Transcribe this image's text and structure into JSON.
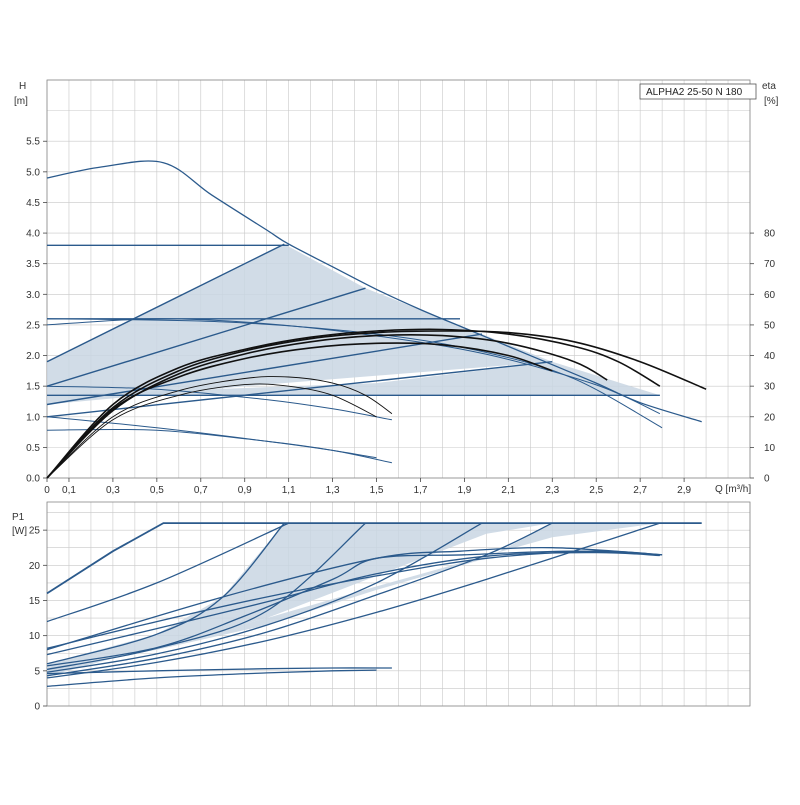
{
  "model_label": "ALPHA2 25-50 N 180",
  "colors": {
    "curve": "#2b5a8c",
    "shade": "#c9d6e3",
    "efficiency": "#111111",
    "grid": "#c8c8c8",
    "axis": "#444444",
    "text": "#333333"
  },
  "chart_data": [
    {
      "id": "head",
      "type": "line",
      "ylabel": "H",
      "yunit": "[m]",
      "y2label": "eta",
      "y2unit": "[%]",
      "xlabel": "Q [m³/h]",
      "xlim": [
        0,
        3.2
      ],
      "ylim": [
        0,
        6.5
      ],
      "y2lim": [
        0,
        130
      ],
      "x_ticks": [
        "0",
        "0,1",
        "0,3",
        "0,5",
        "0,7",
        "0,9",
        "1,1",
        "1,3",
        "1,5",
        "1,7",
        "1,9",
        "2,1",
        "2,3",
        "2,5",
        "2,7",
        "2,9"
      ],
      "x_tick_values": [
        0,
        0.1,
        0.3,
        0.5,
        0.7,
        0.9,
        1.1,
        1.3,
        1.5,
        1.7,
        1.9,
        2.1,
        2.3,
        2.5,
        2.7,
        2.9
      ],
      "y_ticks": [
        "0.0",
        "0.5",
        "1.0",
        "1.5",
        "2.0",
        "2.5",
        "3.0",
        "3.5",
        "4.0",
        "4.5",
        "5.0",
        "5.5"
      ],
      "y_tick_values": [
        0,
        0.5,
        1.0,
        1.5,
        2.0,
        2.5,
        3.0,
        3.5,
        4.0,
        4.5,
        5.0,
        5.5
      ],
      "y2_ticks": [
        "0",
        "10",
        "20",
        "30",
        "40",
        "50",
        "60",
        "70",
        "80"
      ],
      "y2_tick_values": [
        0,
        10,
        20,
        30,
        40,
        50,
        60,
        70,
        80
      ],
      "grid": true,
      "shaded_areas": [
        {
          "points": [
            [
              0,
              1.9
            ],
            [
              1.08,
              3.82
            ],
            [
              1.45,
              3.1
            ],
            [
              1.98,
              2.35
            ],
            [
              2.3,
              1.9
            ],
            [
              0.9,
              1.5
            ],
            [
              0,
              1.2
            ]
          ]
        },
        {
          "points": [
            [
              0,
              1.35
            ],
            [
              1.5,
              1.55
            ],
            [
              2.3,
              1.9
            ],
            [
              2.79,
              1.35
            ],
            [
              0,
              1.35
            ]
          ]
        }
      ],
      "series": [
        {
          "kind": "max",
          "points": [
            [
              0,
              4.9
            ],
            [
              0.25,
              5.08
            ],
            [
              0.53,
              5.15
            ],
            [
              0.75,
              4.62
            ],
            [
              1.0,
              4.05
            ],
            [
              1.1,
              3.82
            ],
            [
              1.3,
              3.45
            ],
            [
              1.5,
              3.08
            ],
            [
              1.7,
              2.75
            ],
            [
              1.9,
              2.45
            ],
            [
              2.1,
              2.15
            ],
            [
              2.3,
              1.85
            ],
            [
              2.5,
              1.55
            ],
            [
              2.7,
              1.23
            ],
            [
              2.98,
              0.92
            ]
          ]
        },
        {
          "kind": "const",
          "points": [
            [
              0,
              3.8
            ],
            [
              1.1,
              3.8
            ]
          ]
        },
        {
          "kind": "const",
          "points": [
            [
              0,
              2.6
            ],
            [
              1.88,
              2.6
            ]
          ]
        },
        {
          "kind": "const",
          "points": [
            [
              0,
              1.35
            ],
            [
              2.79,
              1.35
            ]
          ]
        },
        {
          "kind": "prop",
          "points": [
            [
              0,
              1.9
            ],
            [
              1.08,
              3.82
            ]
          ]
        },
        {
          "kind": "prop",
          "points": [
            [
              0,
              1.5
            ],
            [
              1.45,
              3.1
            ]
          ]
        },
        {
          "kind": "prop",
          "points": [
            [
              0,
              1.2
            ],
            [
              1.98,
              2.35
            ]
          ]
        },
        {
          "kind": "prop",
          "points": [
            [
              0,
              1.0
            ],
            [
              2.3,
              1.9
            ]
          ]
        },
        {
          "kind": "min",
          "points": [
            [
              0,
              2.5
            ],
            [
              0.5,
              2.6
            ],
            [
              1.0,
              2.52
            ],
            [
              1.5,
              2.32
            ],
            [
              2.0,
              2.02
            ],
            [
              2.5,
              1.52
            ],
            [
              2.79,
              1.05
            ]
          ]
        },
        {
          "kind": "min",
          "points": [
            [
              0,
              2.6
            ],
            [
              0.8,
              2.55
            ],
            [
              1.5,
              2.35
            ],
            [
              2.0,
              2.05
            ],
            [
              2.4,
              1.62
            ],
            [
              2.8,
              0.82
            ]
          ]
        },
        {
          "kind": "min",
          "points": [
            [
              0,
              1.5
            ],
            [
              0.5,
              1.45
            ],
            [
              1.0,
              1.28
            ],
            [
              1.3,
              1.13
            ],
            [
              1.57,
              0.95
            ]
          ]
        },
        {
          "kind": "min",
          "points": [
            [
              0,
              0.78
            ],
            [
              0.5,
              0.78
            ],
            [
              1.0,
              0.6
            ],
            [
              1.3,
              0.45
            ],
            [
              1.57,
              0.25
            ]
          ]
        },
        {
          "kind": "min",
          "points": [
            [
              0,
              1.0
            ],
            [
              0.5,
              0.82
            ],
            [
              1.0,
              0.6
            ],
            [
              1.3,
              0.45
            ],
            [
              1.5,
              0.33
            ]
          ]
        }
      ],
      "efficiency": [
        {
          "points": [
            [
              0,
              0
            ],
            [
              0.3,
              23
            ],
            [
              0.6,
              35
            ],
            [
              0.9,
              41.5
            ],
            [
              1.2,
              45.5
            ],
            [
              1.5,
              47.5
            ],
            [
              1.8,
              48
            ],
            [
              2.1,
              47.5
            ],
            [
              2.4,
              44.5
            ],
            [
              2.7,
              38
            ],
            [
              3.0,
              29
            ]
          ]
        },
        {
          "points": [
            [
              0,
              0
            ],
            [
              0.3,
              24
            ],
            [
              0.6,
              36
            ],
            [
              0.9,
              42
            ],
            [
              1.2,
              46
            ],
            [
              1.5,
              48
            ],
            [
              1.8,
              48.5
            ],
            [
              2.1,
              47
            ],
            [
              2.4,
              43
            ],
            [
              2.6,
              38
            ],
            [
              2.79,
              30
            ]
          ]
        },
        {
          "points": [
            [
              0,
              0
            ],
            [
              0.3,
              22
            ],
            [
              0.6,
              34
            ],
            [
              0.9,
              40.5
            ],
            [
              1.2,
              44.5
            ],
            [
              1.5,
              46.5
            ],
            [
              1.8,
              46.5
            ],
            [
              2.1,
              44
            ],
            [
              2.4,
              38
            ],
            [
              2.55,
              32
            ]
          ]
        },
        {
          "points": [
            [
              0,
              0
            ],
            [
              0.3,
              22.5
            ],
            [
              0.6,
              33
            ],
            [
              0.9,
              39
            ],
            [
              1.2,
              42.5
            ],
            [
              1.5,
              44
            ],
            [
              1.8,
              43.5
            ],
            [
              2.1,
              40
            ],
            [
              2.3,
              35
            ]
          ]
        },
        {
          "points": [
            [
              0,
              0
            ],
            [
              0.3,
              20
            ],
            [
              0.6,
              28.5
            ],
            [
              0.9,
              32.5
            ],
            [
              1.1,
              33
            ],
            [
              1.3,
              31
            ],
            [
              1.45,
              27
            ],
            [
              1.57,
              21
            ]
          ]
        },
        {
          "points": [
            [
              0,
              0
            ],
            [
              0.3,
              19
            ],
            [
              0.6,
              27
            ],
            [
              0.9,
              30.5
            ],
            [
              1.1,
              30
            ],
            [
              1.3,
              27
            ],
            [
              1.5,
              20
            ]
          ]
        }
      ]
    },
    {
      "id": "power",
      "type": "line",
      "ylabel": "P1",
      "yunit": "[W]",
      "xlim": [
        0,
        3.2
      ],
      "ylim": [
        0,
        29
      ],
      "y_ticks": [
        "0",
        "5",
        "10",
        "15",
        "20",
        "25"
      ],
      "y_tick_values": [
        0,
        5,
        10,
        15,
        20,
        25
      ],
      "grid": true,
      "shaded_areas": [
        {
          "points": [
            [
              0,
              6
            ],
            [
              0.5,
              10.2
            ],
            [
              0.8,
              15.5
            ],
            [
              1.08,
              26
            ],
            [
              1.68,
              26
            ],
            [
              2.1,
              26
            ],
            [
              2.3,
              26
            ],
            [
              2.0,
              24.5
            ],
            [
              1.5,
              18.5
            ],
            [
              1.0,
              12.5
            ],
            [
              0.5,
              8.5
            ],
            [
              0,
              4.2
            ]
          ]
        },
        {
          "points": [
            [
              0,
              5.2
            ],
            [
              0.5,
              8.0
            ],
            [
              1.0,
              11.5
            ],
            [
              1.5,
              16.5
            ],
            [
              2.0,
              21
            ],
            [
              2.3,
              26
            ],
            [
              2.79,
              26
            ],
            [
              2.3,
              24
            ],
            [
              1.5,
              17
            ],
            [
              1.0,
              12.5
            ],
            [
              0.5,
              8.5
            ],
            [
              0,
              4.8
            ]
          ]
        }
      ],
      "series": [
        {
          "kind": "max",
          "points": [
            [
              0,
              16
            ],
            [
              0.3,
              22
            ],
            [
              0.53,
              26
            ],
            [
              2.98,
              26
            ]
          ]
        },
        {
          "kind": "const",
          "points": [
            [
              0,
              12
            ],
            [
              0.5,
              17.5
            ],
            [
              1.1,
              26
            ]
          ]
        },
        {
          "kind": "const",
          "points": [
            [
              0,
              8
            ],
            [
              0.8,
              15.5
            ],
            [
              1.5,
              21
            ],
            [
              1.88,
              22
            ],
            [
              2.3,
              22.5
            ],
            [
              2.8,
              21.5
            ]
          ]
        },
        {
          "kind": "const",
          "points": [
            [
              0,
              5.7
            ],
            [
              0.5,
              8.3
            ],
            [
              0.9,
              12.8
            ],
            [
              1.3,
              18
            ],
            [
              1.5,
              21
            ],
            [
              1.9,
              21.5
            ],
            [
              2.4,
              22
            ],
            [
              2.79,
              21.5
            ]
          ]
        },
        {
          "kind": "prop",
          "points": [
            [
              0,
              6
            ],
            [
              0.5,
              10.2
            ],
            [
              0.8,
              15.5
            ],
            [
              1.08,
              26
            ]
          ]
        },
        {
          "kind": "prop",
          "points": [
            [
              0,
              5.2
            ],
            [
              0.5,
              8.2
            ],
            [
              1.0,
              13.5
            ],
            [
              1.45,
              26
            ]
          ]
        },
        {
          "kind": "prop",
          "points": [
            [
              0,
              4.8
            ],
            [
              0.5,
              7.4
            ],
            [
              1.0,
              11.5
            ],
            [
              1.5,
              17.5
            ],
            [
              1.98,
              26
            ]
          ]
        },
        {
          "kind": "prop",
          "points": [
            [
              0,
              4.3
            ],
            [
              0.5,
              6.8
            ],
            [
              1.0,
              10.5
            ],
            [
              1.5,
              15.8
            ],
            [
              2.0,
              21.5
            ],
            [
              2.3,
              26
            ]
          ]
        },
        {
          "kind": "prop",
          "points": [
            [
              0,
              4.0
            ],
            [
              0.5,
              6.2
            ],
            [
              1.0,
              9.3
            ],
            [
              1.5,
              13.3
            ],
            [
              2.0,
              18
            ],
            [
              2.79,
              26
            ]
          ]
        },
        {
          "kind": "min",
          "points": [
            [
              0,
              7.3
            ],
            [
              0.5,
              11
            ],
            [
              1.0,
              14.8
            ],
            [
              1.5,
              18.8
            ],
            [
              2.0,
              21.3
            ],
            [
              2.5,
              21.8
            ],
            [
              2.79,
              21.4
            ]
          ]
        },
        {
          "kind": "min",
          "points": [
            [
              0,
              4.6
            ],
            [
              0.5,
              5
            ],
            [
              1.0,
              5.3
            ],
            [
              1.3,
              5.4
            ],
            [
              1.57,
              5.4
            ]
          ]
        },
        {
          "kind": "min",
          "points": [
            [
              0,
              2.8
            ],
            [
              0.5,
              4
            ],
            [
              1.0,
              4.7
            ],
            [
              1.3,
              5.0
            ],
            [
              1.5,
              5.1
            ]
          ]
        },
        {
          "kind": "min",
          "points": [
            [
              0,
              8.2
            ],
            [
              0.5,
              12
            ],
            [
              1.0,
              15.5
            ],
            [
              1.5,
              18.5
            ],
            [
              2.0,
              21
            ],
            [
              2.5,
              22
            ],
            [
              2.8,
              21.5
            ]
          ]
        }
      ]
    }
  ]
}
